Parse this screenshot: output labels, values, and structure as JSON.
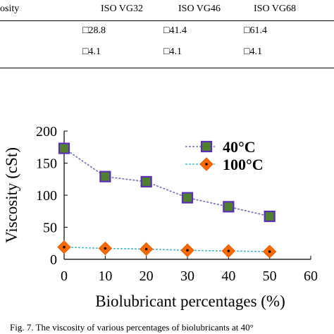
{
  "table": {
    "header": [
      "osity",
      "ISO VG32",
      "ISO VG46",
      "ISO VG68"
    ],
    "rows": [
      [
        "",
        "□28.8",
        "□41.4",
        "□61.4"
      ],
      [
        "",
        "□4.1",
        "□4.1",
        "□4.1"
      ]
    ]
  },
  "chart_data": {
    "type": "line",
    "x": [
      0,
      10,
      20,
      30,
      40,
      50
    ],
    "xlabel": "Biolubricant percentages (%)",
    "ylabel": "Viscosity (cSt)",
    "xlim": [
      0,
      60
    ],
    "ylim": [
      0,
      200
    ],
    "xticks": [
      "0",
      "10",
      "20",
      "30",
      "40",
      "50",
      "60"
    ],
    "yticks": [
      "0",
      "50",
      "100",
      "150",
      "200"
    ],
    "grid": false,
    "legend_position": "top-right",
    "series": [
      {
        "name": "40°C",
        "values": [
          173,
          129,
          121,
          96,
          82,
          67
        ],
        "color": "#6f70b8",
        "marker": "square",
        "marker_fill": "#4f7f2f",
        "marker_edge": "#5b2fb5"
      },
      {
        "name": "100°C",
        "values": [
          19,
          17,
          16,
          14,
          13,
          12
        ],
        "color": "#4bb8c8",
        "marker": "diamond",
        "marker_fill": "#ff6a00",
        "marker_edge": "#e05a00"
      }
    ]
  },
  "caption": "Fig. 7. The viscosity of various percentages of biolubricants at 40°"
}
